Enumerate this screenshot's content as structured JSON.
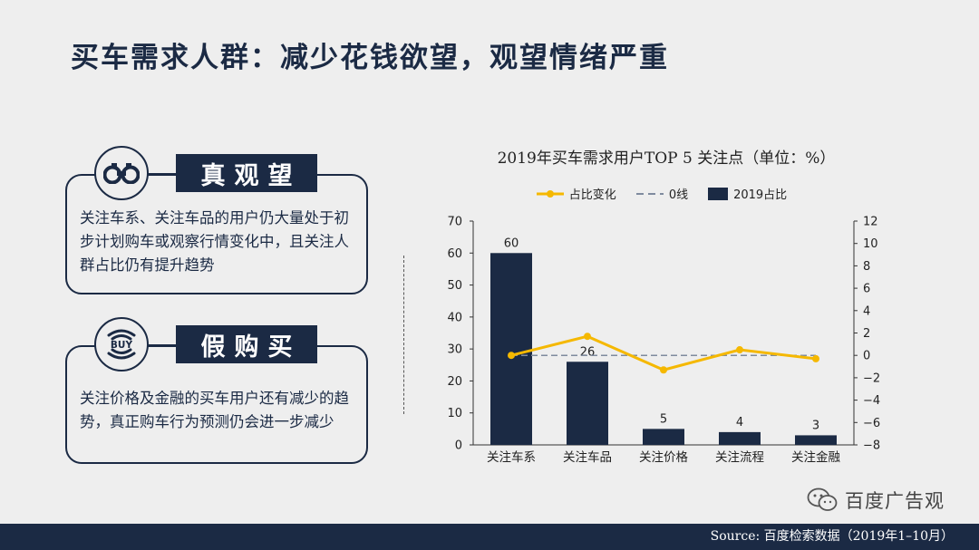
{
  "page": {
    "title": "买车需求人群：减少花钱欲望，观望情绪严重",
    "watermark": "百度广告观",
    "source": "Source: 百度检索数据（2019年1–10月）"
  },
  "cards": [
    {
      "icon": "binoculars-icon",
      "label": "真观望",
      "text": "关注车系、关注车品的用户仍大量处于初步计划购车或观察行情变化中，且关注人群占比仍有提升趋势"
    },
    {
      "icon": "buy-wave-icon",
      "icon_text": "BUY",
      "label": "假购买",
      "text": "关注价格及金融的买车用户还有减少的趋势，真正购车行为预测仍会进一步减少"
    }
  ],
  "colors": {
    "navy": "#1b2a44",
    "line": "#f5b800",
    "zero_line": "#7f8b9e"
  },
  "chart_data": {
    "type": "bar",
    "title": "2019年买车需求用户TOP 5 关注点（单位：%）",
    "categories": [
      "关注车系",
      "关注车品",
      "关注价格",
      "关注流程",
      "关注金融"
    ],
    "series": [
      {
        "name": "2019占比",
        "type": "bar",
        "axis": "left",
        "values": [
          60,
          26,
          5,
          4,
          3
        ],
        "data_labels": [
          "60",
          "26",
          "5",
          "4",
          "3"
        ]
      },
      {
        "name": "占比变化",
        "type": "line",
        "axis": "right",
        "values": [
          0,
          1.7,
          -1.3,
          0.5,
          -0.3
        ]
      },
      {
        "name": "0线",
        "type": "line",
        "style": "dashed",
        "axis": "right",
        "values": [
          0,
          0,
          0,
          0,
          0
        ]
      }
    ],
    "legend": [
      "占比变化",
      "0线",
      "2019占比"
    ],
    "y_left": {
      "min": 0,
      "max": 70,
      "ticks": [
        "0",
        "10",
        "20",
        "30",
        "40",
        "50",
        "60",
        "70"
      ]
    },
    "y_right": {
      "min": -8,
      "max": 12,
      "ticks": [
        "−8",
        "−6",
        "−4",
        "−2",
        "0",
        "2",
        "4",
        "6",
        "8",
        "10",
        "12"
      ]
    }
  }
}
